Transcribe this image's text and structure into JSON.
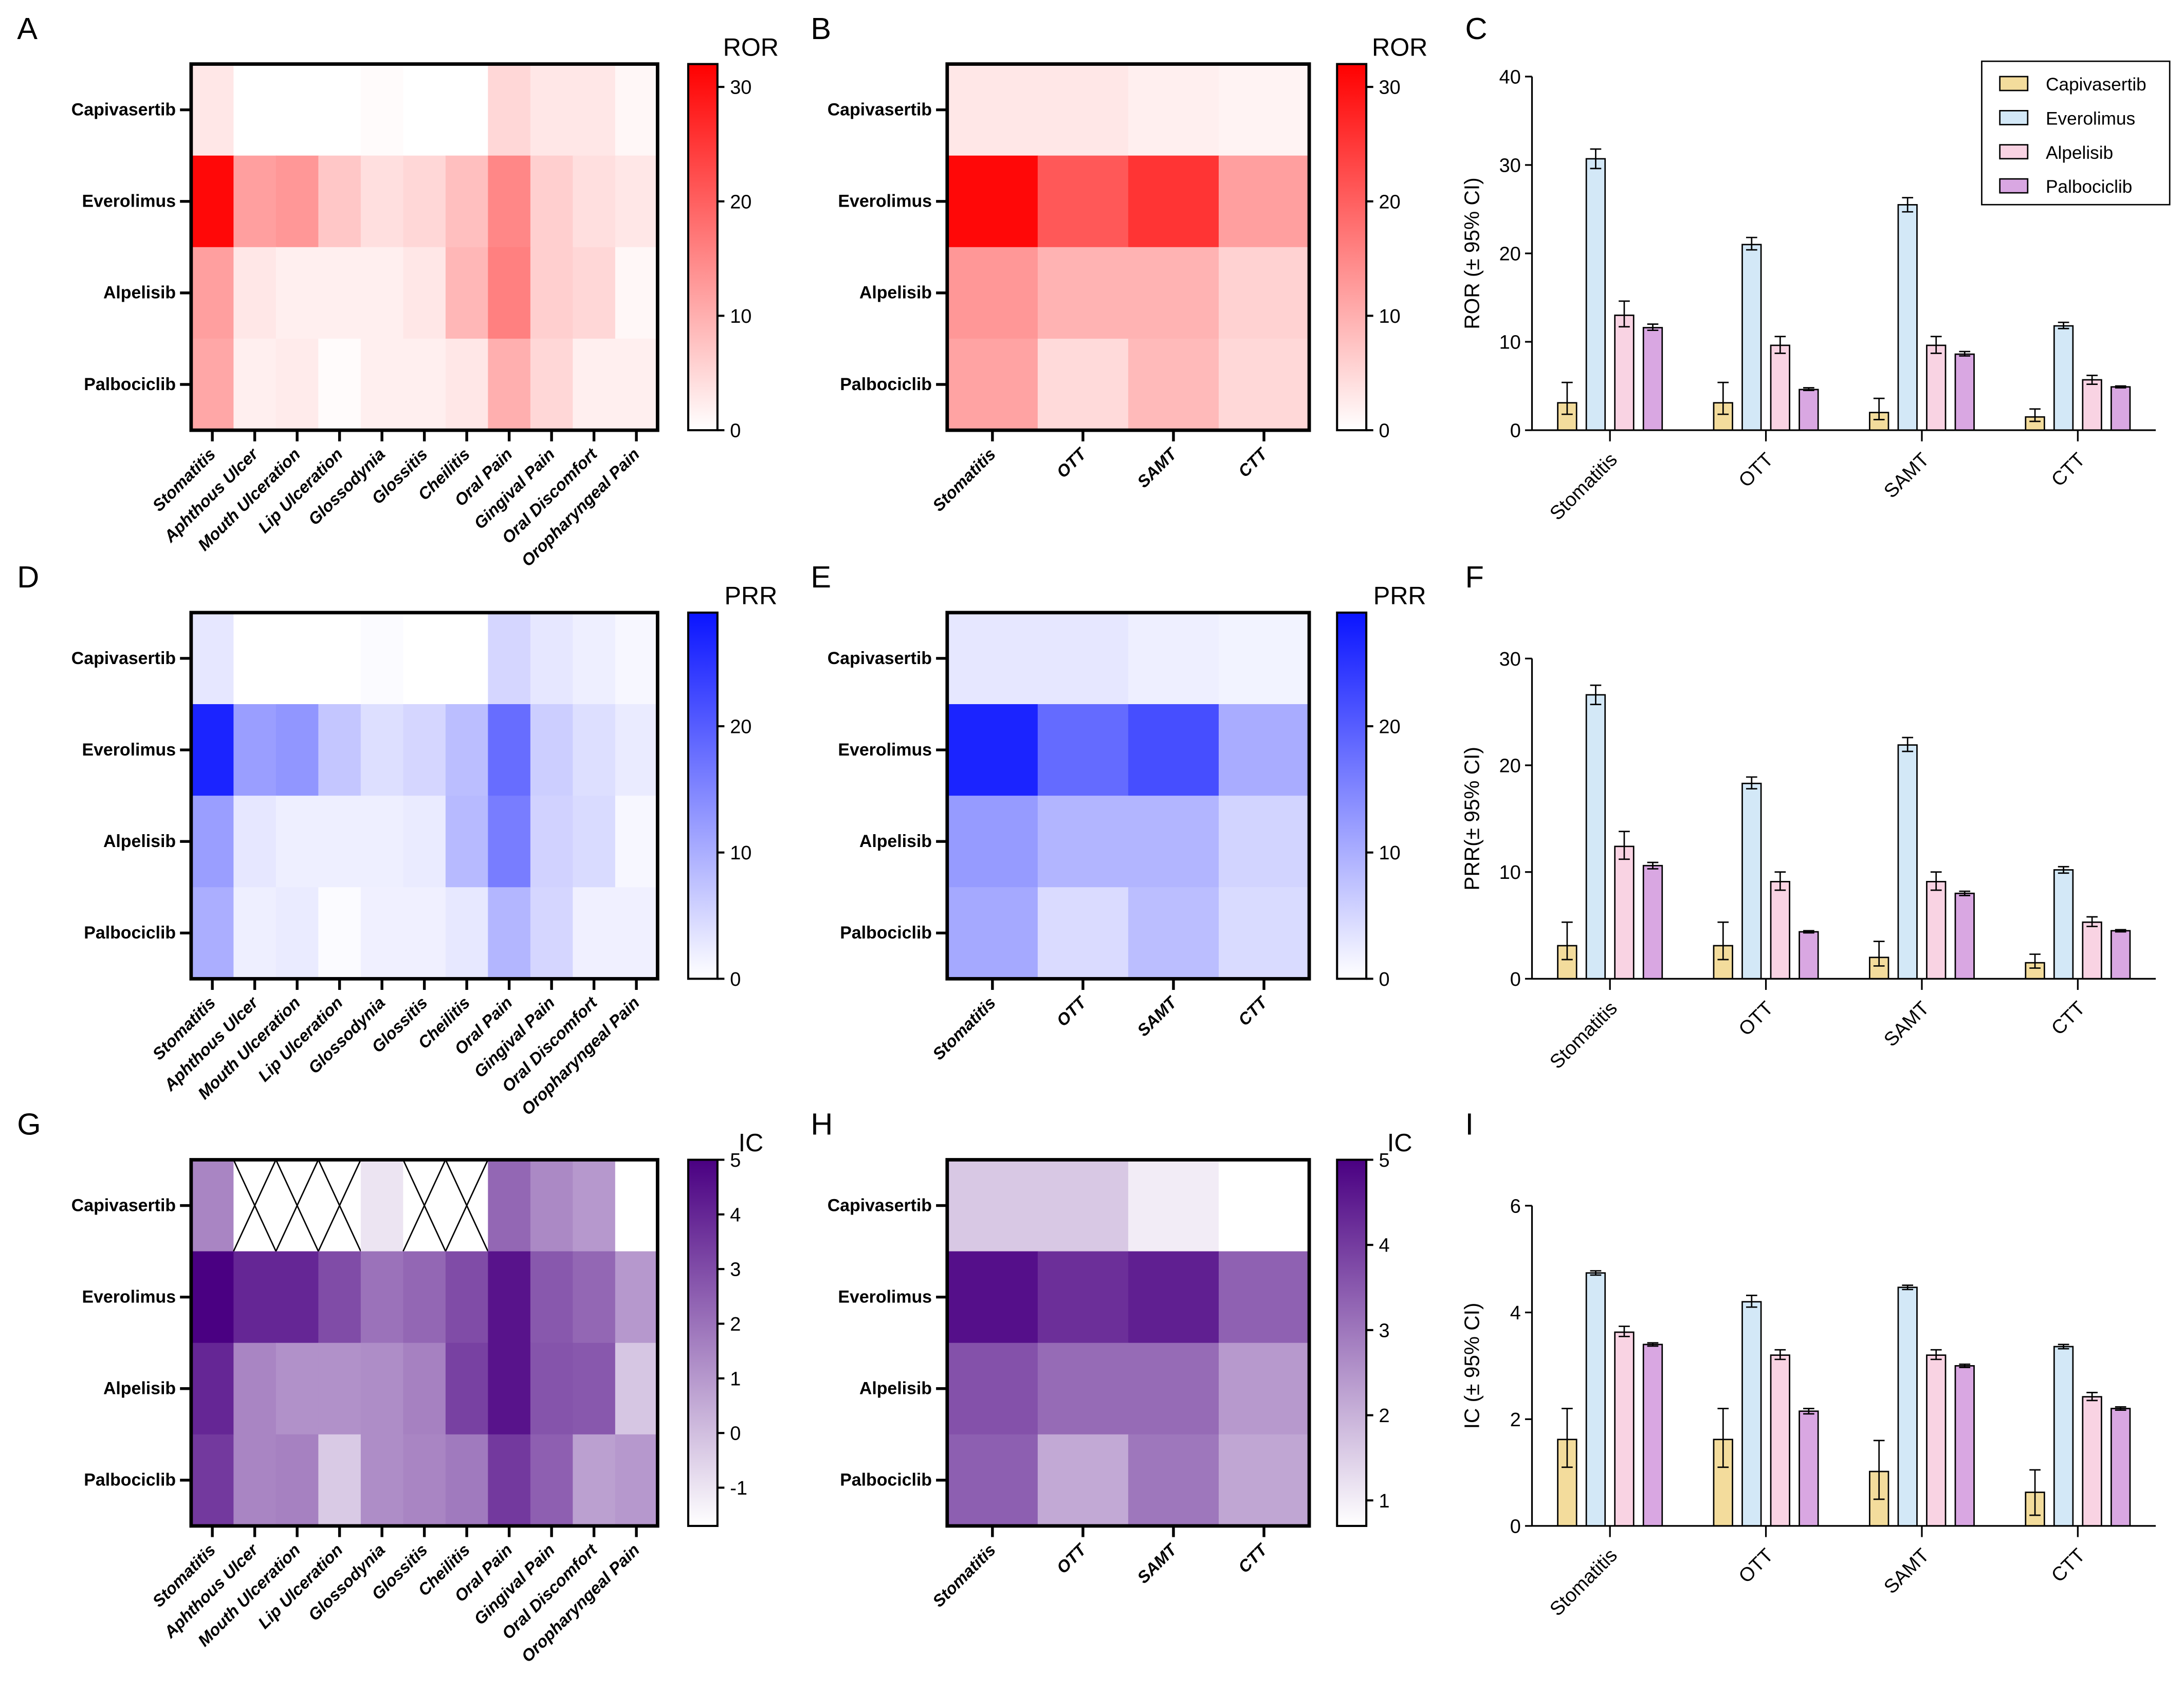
{
  "drugs": [
    "Capivasertib",
    "Everolimus",
    "Alpelisib",
    "Palbociclib"
  ],
  "drug_colors": [
    "#f3dc9c",
    "#d3e8f7",
    "#f9d3e3",
    "#d9a7e2"
  ],
  "chart_data": [
    {
      "panel": "A",
      "type": "heatmap",
      "metric": "ROR",
      "color": "#ff0000",
      "vmin": 0,
      "vmax": 32,
      "ticks": [
        0,
        10,
        20,
        30
      ],
      "columns": [
        "Stomatitis",
        "Aphthous Ulcer",
        "Mouth Ulceration",
        "Lip Ulceration",
        "Glossodynia",
        "Glossitis",
        "Cheilitis",
        "Oral Pain",
        "Gingival Pain",
        "Oral Discomfort",
        "Oropharyngeal Pain"
      ],
      "values": [
        [
          3,
          0,
          0,
          0,
          0.5,
          0,
          0,
          5,
          3,
          3,
          1
        ],
        [
          31,
          12,
          13,
          7,
          4,
          5,
          8,
          15,
          6,
          4,
          3
        ],
        [
          12,
          3,
          2,
          2,
          2,
          3,
          9,
          16,
          6,
          5,
          1
        ],
        [
          11,
          2,
          2.5,
          0.5,
          2,
          2,
          3,
          10,
          5,
          2,
          2
        ]
      ]
    },
    {
      "panel": "B",
      "type": "heatmap",
      "metric": "ROR",
      "color": "#ff0000",
      "vmin": 0,
      "vmax": 32,
      "ticks": [
        0,
        10,
        20,
        30
      ],
      "columns": [
        "Stomatitis",
        "OTT",
        "SAMT",
        "CTT"
      ],
      "values": [
        [
          3,
          3,
          2,
          1.5
        ],
        [
          31,
          21,
          25.5,
          12
        ],
        [
          13,
          9.6,
          9.6,
          5.7
        ],
        [
          11.6,
          4.6,
          8.7,
          4.9
        ]
      ]
    },
    {
      "panel": "C",
      "type": "bar",
      "ylabel": "ROR (± 95% CI)",
      "ylim": [
        0,
        40
      ],
      "ticks": [
        0,
        10,
        20,
        30,
        40
      ],
      "legend": "top-right",
      "categories": [
        "Stomatitis",
        "OTT",
        "SAMT",
        "CTT"
      ],
      "series": [
        {
          "name": "Capivasertib",
          "values": [
            3.1,
            3.1,
            2.0,
            1.5
          ],
          "lo": [
            1.8,
            1.8,
            1.2,
            1.0
          ],
          "hi": [
            5.4,
            5.4,
            3.6,
            2.4
          ]
        },
        {
          "name": "Everolimus",
          "values": [
            30.7,
            21.0,
            25.5,
            11.8
          ],
          "lo": [
            29.6,
            20.4,
            24.7,
            11.5
          ],
          "hi": [
            31.8,
            21.8,
            26.3,
            12.2
          ]
        },
        {
          "name": "Alpelisib",
          "values": [
            13.0,
            9.6,
            9.6,
            5.7
          ],
          "lo": [
            11.7,
            8.7,
            8.7,
            5.2
          ],
          "hi": [
            14.6,
            10.6,
            10.6,
            6.2
          ]
        },
        {
          "name": "Palbociclib",
          "values": [
            11.6,
            4.6,
            8.6,
            4.9
          ],
          "lo": [
            11.3,
            4.5,
            8.4,
            4.8
          ],
          "hi": [
            12.0,
            4.8,
            8.9,
            5.0
          ]
        }
      ]
    },
    {
      "panel": "D",
      "type": "heatmap",
      "metric": "PRR",
      "color": "#0a14ff",
      "vmin": 0,
      "vmax": 29,
      "ticks": [
        0,
        10,
        20
      ],
      "columns": [
        "Stomatitis",
        "Aphthous Ulcer",
        "Mouth Ulceration",
        "Lip Ulceration",
        "Glossodynia",
        "Glossitis",
        "Cheilitis",
        "Oral Pain",
        "Gingival Pain",
        "Oral Discomfort",
        "Oropharyngeal Pain"
      ],
      "values": [
        [
          3,
          0,
          0,
          0,
          0.5,
          0,
          0,
          5,
          3,
          2,
          1
        ],
        [
          27,
          12,
          13,
          7,
          4,
          5,
          8,
          18,
          6,
          4,
          2.5
        ],
        [
          12,
          3,
          2,
          2,
          2,
          2.5,
          8.5,
          16,
          5.5,
          4.5,
          1
        ],
        [
          10,
          2,
          2.5,
          0.5,
          1.8,
          1.8,
          2.8,
          9,
          5,
          1.8,
          1.8
        ]
      ]
    },
    {
      "panel": "E",
      "type": "heatmap",
      "metric": "PRR",
      "color": "#0a14ff",
      "vmin": 0,
      "vmax": 29,
      "ticks": [
        0,
        10,
        20
      ],
      "columns": [
        "Stomatitis",
        "OTT",
        "SAMT",
        "CTT"
      ],
      "values": [
        [
          3,
          3,
          2,
          1.5
        ],
        [
          27,
          18.3,
          21.9,
          10.2
        ],
        [
          12.4,
          9.1,
          9.1,
          5.3
        ],
        [
          10.6,
          4.4,
          8.0,
          4.5
        ]
      ]
    },
    {
      "panel": "F",
      "type": "bar",
      "ylabel": "PRR(± 95% CI)",
      "ylim": [
        0,
        30
      ],
      "ticks": [
        0,
        10,
        20,
        30
      ],
      "categories": [
        "Stomatitis",
        "OTT",
        "SAMT",
        "CTT"
      ],
      "series": [
        {
          "name": "Capivasertib",
          "values": [
            3.1,
            3.1,
            2.0,
            1.5
          ],
          "lo": [
            1.8,
            1.8,
            1.2,
            1.0
          ],
          "hi": [
            5.3,
            5.3,
            3.5,
            2.3
          ]
        },
        {
          "name": "Everolimus",
          "values": [
            26.6,
            18.3,
            21.9,
            10.2
          ],
          "lo": [
            25.7,
            17.8,
            21.3,
            9.9
          ],
          "hi": [
            27.5,
            18.9,
            22.6,
            10.5
          ]
        },
        {
          "name": "Alpelisib",
          "values": [
            12.4,
            9.1,
            9.1,
            5.3
          ],
          "lo": [
            11.2,
            8.3,
            8.3,
            4.9
          ],
          "hi": [
            13.8,
            10.0,
            10.0,
            5.8
          ]
        },
        {
          "name": "Palbociclib",
          "values": [
            10.6,
            4.4,
            8.0,
            4.5
          ],
          "lo": [
            10.3,
            4.3,
            7.8,
            4.4
          ],
          "hi": [
            10.9,
            4.5,
            8.2,
            4.6
          ]
        }
      ]
    },
    {
      "panel": "G",
      "type": "heatmap",
      "metric": "IC",
      "color": "#4a0082",
      "vmin": -1.7,
      "vmax": 5,
      "ticks": [
        -1,
        0,
        1,
        2,
        3,
        4,
        5
      ],
      "columns": [
        "Stomatitis",
        "Aphthous Ulcer",
        "Mouth Ulceration",
        "Lip Ulceration",
        "Glossodynia",
        "Glossitis",
        "Cheilitis",
        "Oral Pain",
        "Gingival Pain",
        "Oral Discomfort",
        "Oropharyngeal Pain"
      ],
      "values": [
        [
          1.5,
          null,
          null,
          null,
          -1.0,
          null,
          null,
          2.3,
          1.4,
          1.0,
          -1.7
        ],
        [
          5,
          4.0,
          4.0,
          3.0,
          2.0,
          2.3,
          3.0,
          4.5,
          2.7,
          2.3,
          1.0
        ],
        [
          4.0,
          1.5,
          1.2,
          1.2,
          1.3,
          1.6,
          3.3,
          4.5,
          2.8,
          2.7,
          -0.2
        ],
        [
          3.5,
          1.5,
          1.6,
          -0.3,
          1.3,
          1.5,
          1.8,
          3.5,
          2.5,
          0.8,
          1.0
        ]
      ]
    },
    {
      "panel": "H",
      "type": "heatmap",
      "metric": "IC",
      "color": "#4a0082",
      "vmin": 0.7,
      "vmax": 5,
      "ticks": [
        1,
        2,
        3,
        4,
        5
      ],
      "columns": [
        "Stomatitis",
        "OTT",
        "SAMT",
        "CTT"
      ],
      "values": [
        [
          1.62,
          1.62,
          1.02,
          0.63
        ],
        [
          4.74,
          4.2,
          4.47,
          3.36
        ],
        [
          3.63,
          3.2,
          3.2,
          2.42
        ],
        [
          3.4,
          2.15,
          3.0,
          2.2
        ]
      ]
    },
    {
      "panel": "I",
      "type": "bar",
      "ylabel": "IC (± 95% CI)",
      "ylim": [
        0,
        6
      ],
      "ticks": [
        0,
        2,
        4,
        6
      ],
      "categories": [
        "Stomatitis",
        "OTT",
        "SAMT",
        "CTT"
      ],
      "series": [
        {
          "name": "Capivasertib",
          "values": [
            1.62,
            1.62,
            1.02,
            0.63
          ],
          "lo": [
            1.1,
            1.1,
            0.5,
            0.2
          ],
          "hi": [
            2.2,
            2.2,
            1.6,
            1.05
          ]
        },
        {
          "name": "Everolimus",
          "values": [
            4.74,
            4.2,
            4.47,
            3.36
          ],
          "lo": [
            4.7,
            4.1,
            4.43,
            3.32
          ],
          "hi": [
            4.78,
            4.32,
            4.51,
            3.4
          ]
        },
        {
          "name": "Alpelisib",
          "values": [
            3.63,
            3.2,
            3.2,
            2.42
          ],
          "lo": [
            3.55,
            3.12,
            3.12,
            2.35
          ],
          "hi": [
            3.74,
            3.3,
            3.3,
            2.5
          ]
        },
        {
          "name": "Palbociclib",
          "values": [
            3.4,
            2.15,
            3.0,
            2.2
          ],
          "lo": [
            3.37,
            2.1,
            2.97,
            2.17
          ],
          "hi": [
            3.43,
            2.2,
            3.03,
            2.23
          ]
        }
      ]
    }
  ]
}
